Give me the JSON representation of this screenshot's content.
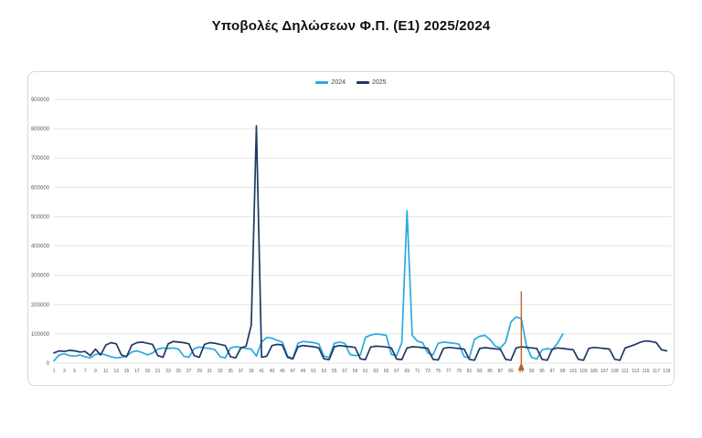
{
  "page": {
    "title": "Υποβολές Δηλώσεων Φ.Π. (Ε1) 2025/2024"
  },
  "chart_data": {
    "type": "line",
    "title": "Υποβολές Δηλώσεων Φ.Π. (Ε1) 2025/2024",
    "xlabel": "",
    "ylabel": "",
    "ylim": [
      0,
      900000
    ],
    "x_max": 120,
    "grid": true,
    "legend_position": "top-center",
    "colors": {
      "grid": "#e4e4e4",
      "axis_text": "#595959",
      "border": "#d8d8d8"
    },
    "y_ticks": [
      0,
      100000,
      200000,
      300000,
      400000,
      500000,
      600000,
      700000,
      800000,
      900000
    ],
    "x_ticks": [
      1,
      3,
      5,
      7,
      9,
      11,
      13,
      15,
      17,
      19,
      21,
      23,
      25,
      27,
      29,
      31,
      33,
      35,
      37,
      39,
      41,
      43,
      45,
      47,
      49,
      51,
      53,
      55,
      57,
      59,
      61,
      63,
      65,
      67,
      69,
      71,
      73,
      75,
      77,
      79,
      81,
      83,
      85,
      87,
      89,
      91,
      93,
      95,
      97,
      99,
      101,
      103,
      105,
      107,
      109,
      111,
      113,
      115,
      117,
      119
    ],
    "series": [
      {
        "name": "2024",
        "color": "#27AAE1",
        "x_start": 1,
        "values": [
          8000,
          28000,
          32000,
          26000,
          24000,
          28000,
          22000,
          18000,
          30000,
          32000,
          28000,
          22000,
          18000,
          20000,
          24000,
          38000,
          42000,
          36000,
          28000,
          35000,
          48000,
          52000,
          50000,
          52000,
          48000,
          24000,
          20000,
          50000,
          55000,
          52000,
          50000,
          46000,
          22000,
          18000,
          52000,
          56000,
          54000,
          50000,
          48000,
          24000,
          72000,
          88000,
          85000,
          78000,
          72000,
          24000,
          16000,
          68000,
          74000,
          72000,
          70000,
          66000,
          24000,
          20000,
          68000,
          72000,
          68000,
          30000,
          26000,
          28000,
          88000,
          96000,
          100000,
          98000,
          95000,
          30000,
          26000,
          70000,
          520000,
          95000,
          75000,
          70000,
          35000,
          28000,
          68000,
          72000,
          70000,
          68000,
          65000,
          22000,
          18000,
          82000,
          92000,
          95000,
          80000,
          58000,
          52000,
          72000,
          140000,
          158000,
          152000,
          60000,
          20000,
          14000,
          45000,
          50000,
          46000,
          68000,
          100000
        ]
      },
      {
        "name": "2025",
        "color": "#1F3864",
        "x_start": 1,
        "values": [
          35000,
          42000,
          40000,
          44000,
          42000,
          38000,
          40000,
          26000,
          48000,
          28000,
          62000,
          70000,
          66000,
          28000,
          22000,
          62000,
          70000,
          72000,
          68000,
          64000,
          26000,
          20000,
          66000,
          74000,
          72000,
          70000,
          66000,
          26000,
          20000,
          64000,
          70000,
          68000,
          64000,
          60000,
          22000,
          18000,
          52000,
          58000,
          130000,
          810000,
          20000,
          24000,
          60000,
          64000,
          62000,
          20000,
          14000,
          56000,
          60000,
          58000,
          56000,
          52000,
          15000,
          12000,
          56000,
          60000,
          58000,
          56000,
          54000,
          15000,
          12000,
          55000,
          58000,
          57000,
          55000,
          52000,
          14000,
          12000,
          52000,
          56000,
          55000,
          53000,
          50000,
          13000,
          11000,
          50000,
          54000,
          52000,
          50000,
          48000,
          13000,
          10000,
          50000,
          53000,
          51000,
          49000,
          47000,
          13000,
          10000,
          52000,
          56000,
          54000,
          52000,
          50000,
          13000,
          10000,
          48000,
          52000,
          50000,
          48000,
          46000,
          13000,
          10000,
          50000,
          54000,
          52000,
          50000,
          48000,
          13000,
          10000,
          52000,
          58000,
          64000,
          72000,
          76000,
          74000,
          70000,
          46000,
          42000
        ]
      }
    ],
    "annotations": [
      {
        "type": "vline",
        "x": 91,
        "y0": 0,
        "y1": 245000,
        "color": "#C55A11",
        "marker": "triangle-up"
      }
    ]
  }
}
